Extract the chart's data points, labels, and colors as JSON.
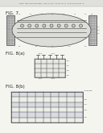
{
  "bg_color": "#f5f5f0",
  "header_text": "Patent Application Publication   May 26, 2011  Sheet 7 of 14   US 2011/0123781 A1",
  "fig7_label": "FIG. 7",
  "fig8a_label": "FIG. 8(a)",
  "fig8b_label": "FIG. 8(b)",
  "line_color": "#444444",
  "hatch_line": "#777777",
  "fill_gray": "#c8c8c8",
  "module_fill": "#e0e0dc",
  "stripe_even": "#d8dce0",
  "stripe_odd": "#eeeee8",
  "label_color": "#333333"
}
